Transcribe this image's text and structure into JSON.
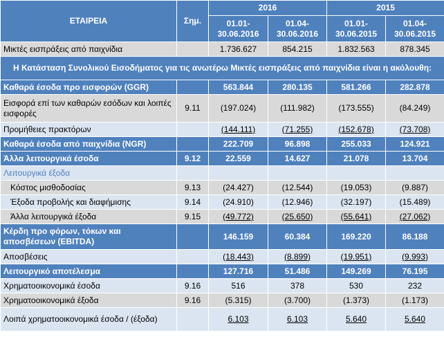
{
  "header": {
    "company": "ΕΤΑΙΡΕΙΑ",
    "note": "Σημ.",
    "year_2016": "2016",
    "year_2015": "2015",
    "periods": [
      "01.01-\n30.06.2016",
      "01.04-\n30.06.2016",
      "01.01-\n30.06.2015",
      "01.04-\n30.06.2015"
    ]
  },
  "gross": {
    "label": "Μικτές εισπράξεις από παιχνίδια",
    "values": [
      "1.736.627",
      "854.215",
      "1.832.563",
      "878.345"
    ]
  },
  "section_title": "Η Κατάσταση Συνολικού Εισοδήματος για τις ανωτέρω Μικτές εισπράξεις από παιχνίδια είναι η ακόλουθη:",
  "rows": [
    {
      "label": "Καθαρά έσοδα προ εισφορών (GGR)",
      "note": "",
      "values": [
        "563.844",
        "280.135",
        "581.266",
        "282.878"
      ]
    },
    {
      "label": "Εισφορά επί των καθαρών εσόδων και λοιπές εισφορές",
      "note": "9.11",
      "values": [
        "(197.024)",
        "(111.982)",
        "(173.555)",
        "(84.249)"
      ]
    },
    {
      "label": "Προμήθειες πρακτόρων",
      "note": "",
      "values": [
        "(144.111)",
        "(71.255)",
        "(152.678)",
        "(73.708)"
      ]
    },
    {
      "label": "Καθαρά έσοδα από παιχνίδια (NGR)",
      "note": "",
      "values": [
        "222.709",
        "96.898",
        "255.033",
        "124.921"
      ]
    },
    {
      "label": "Άλλα λειτουργικά έσοδα",
      "note": "9.12",
      "values": [
        "22.559",
        "14.627",
        "21.078",
        "13.704"
      ]
    },
    {
      "label": "Λειτουργικά έξοδα",
      "note": "",
      "values": [
        "",
        "",
        "",
        ""
      ]
    },
    {
      "label": "Κόστος μισθοδοσίας",
      "note": "9.13",
      "values": [
        "(24.427)",
        "(12.544)",
        "(19.053)",
        "(9.887)"
      ]
    },
    {
      "label": "Έξοδα προβολής και διαφήμισης",
      "note": "9.14",
      "values": [
        "(24.910)",
        "(12.946)",
        "(32.197)",
        "(15.489)"
      ]
    },
    {
      "label": "Άλλα λειτουργικά έξοδα",
      "note": "9.15",
      "values": [
        "(49.772)",
        "(25.650)",
        "(55.641)",
        "(27.062)"
      ]
    },
    {
      "label": "Κέρδη προ φόρων, τόκων και αποσβέσεων (EBITDA)",
      "note": "",
      "values": [
        "146.159",
        "60.384",
        "169.220",
        "86.188"
      ]
    },
    {
      "label": "Αποσβέσεις",
      "note": "",
      "values": [
        "(18.443)",
        "(8.899)",
        "(19.951)",
        "(9.993)"
      ]
    },
    {
      "label": "Λειτουργικό αποτέλεσμα",
      "note": "",
      "values": [
        "127.716",
        "51.486",
        "149.269",
        "76.195"
      ]
    },
    {
      "label": "Χρηματοοικονομικά έσοδα",
      "note": "9.16",
      "values": [
        "516",
        "378",
        "530",
        "232"
      ]
    },
    {
      "label": "Χρηματοοικονομικά έξοδα",
      "note": "9.16",
      "values": [
        "(5.315)",
        "(3.700)",
        "(1.373)",
        "(1.173)"
      ]
    },
    {
      "label": "Λοιπά χρηματοοικονομικά έσοδα / (έξοδα)",
      "note": "",
      "values": [
        "6.103",
        "6.103",
        "5.640",
        "5.640"
      ]
    }
  ]
}
